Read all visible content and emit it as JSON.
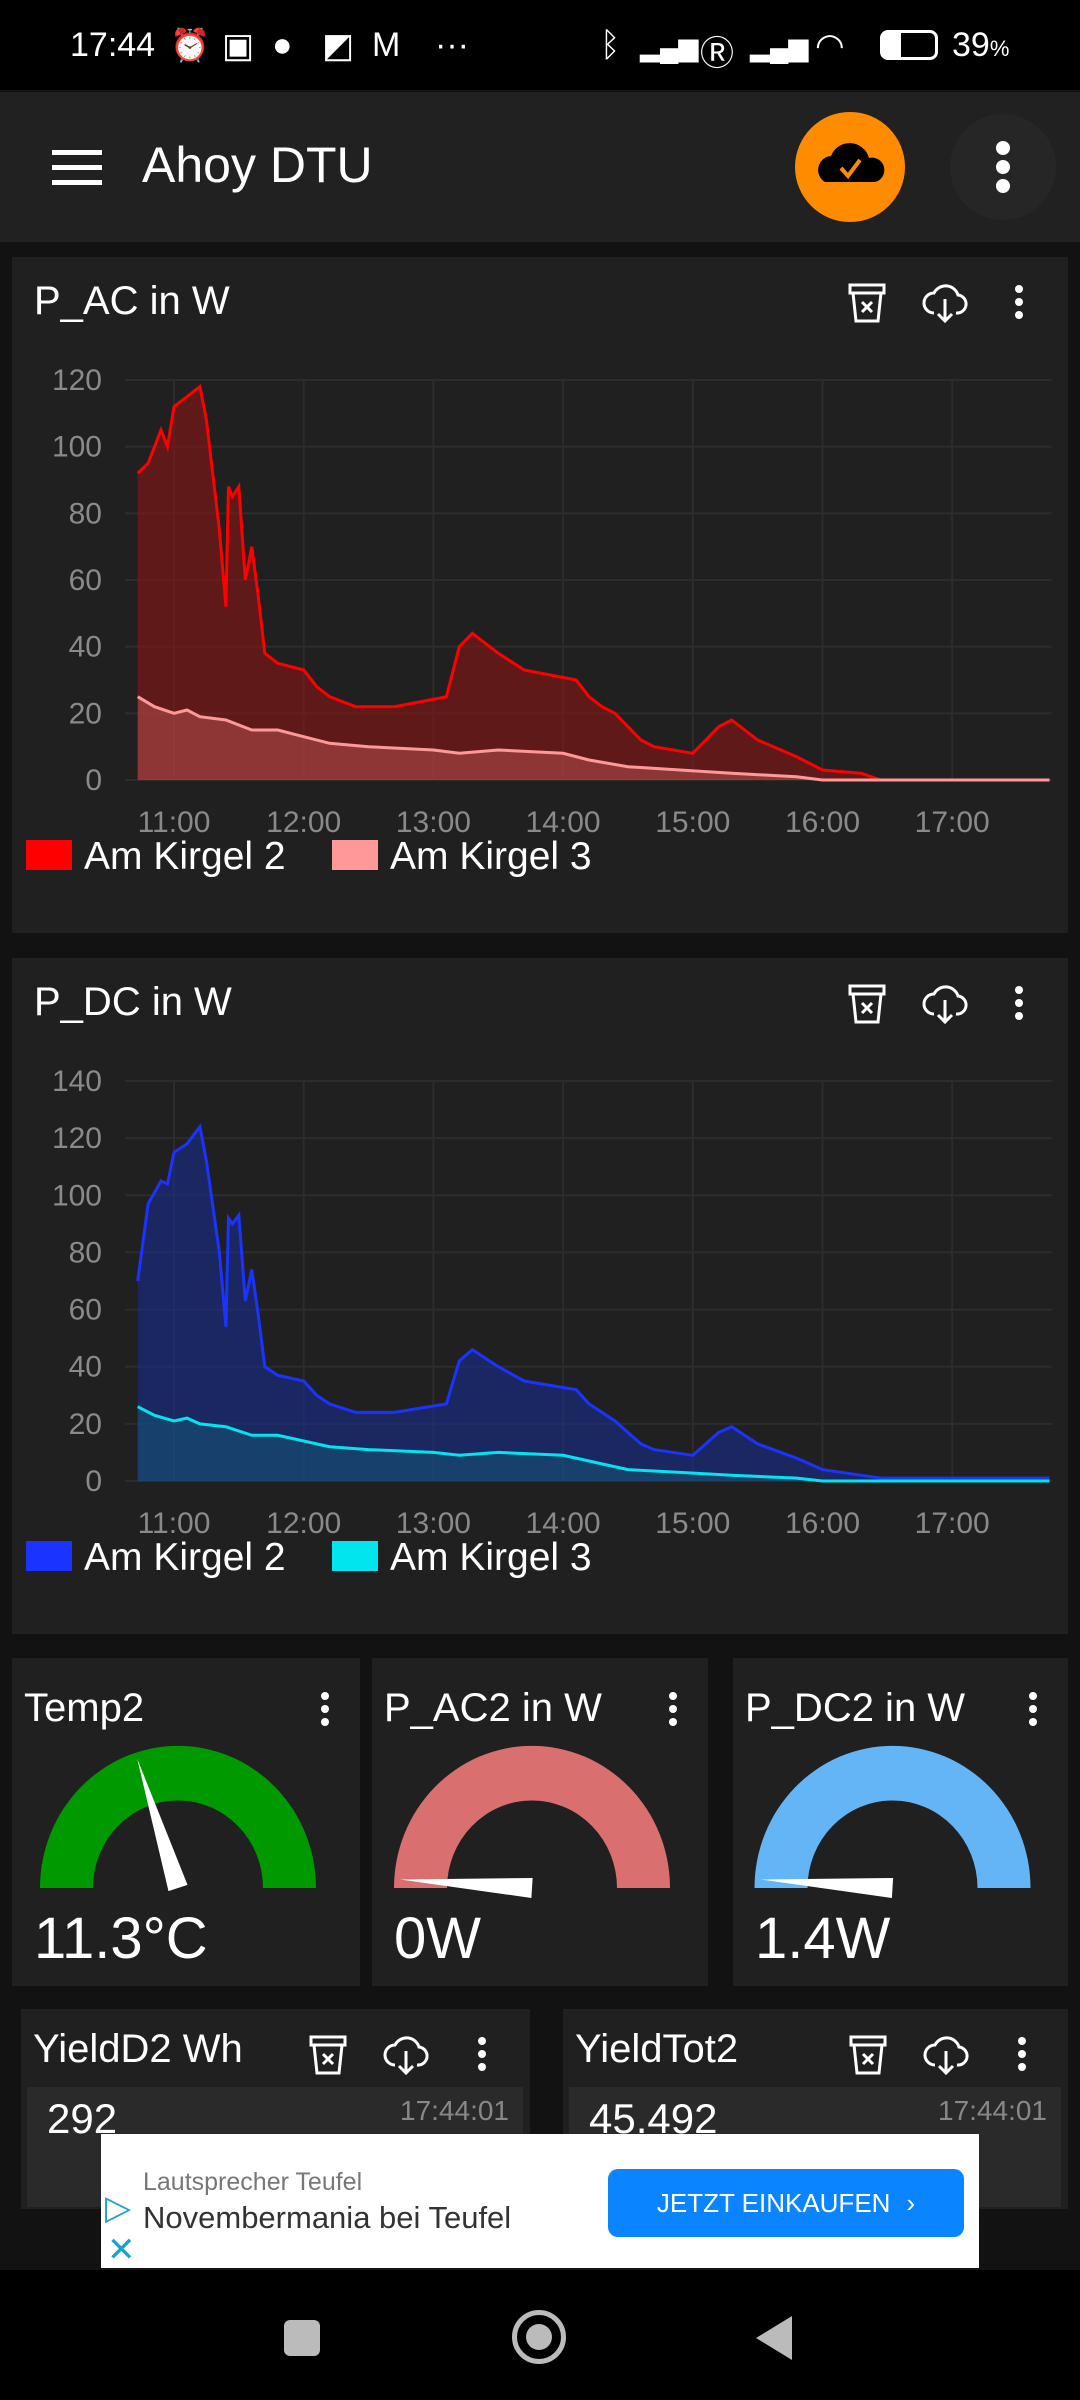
{
  "status_bar": {
    "time": "17:44",
    "battery": "39",
    "battery_unit": "%",
    "notif_more": "···"
  },
  "app_bar": {
    "title": "Ahoy DTU",
    "accent": "#ff8c00"
  },
  "charts": [
    {
      "title": "P_AC in W",
      "chart_data": {
        "type": "area",
        "title": "P_AC in W",
        "xlabel": "",
        "ylabel": "",
        "x_ticks": [
          "11:00",
          "12:00",
          "13:00",
          "14:00",
          "15:00",
          "16:00",
          "17:00"
        ],
        "y_ticks": [
          "0",
          "20",
          "40",
          "60",
          "80",
          "100",
          "120"
        ],
        "ylim": [
          0,
          120
        ],
        "xlim_hours": [
          10.62,
          17.75
        ],
        "legend": "bottom-left",
        "grid": true,
        "series": [
          {
            "name": "Am Kirgel 2",
            "color": "#ff0000",
            "fill": "rgba(150,20,20,0.55)",
            "x": [
              10.72,
              10.8,
              10.9,
              10.95,
              11.0,
              11.1,
              11.2,
              11.25,
              11.35,
              11.4,
              11.42,
              11.45,
              11.5,
              11.55,
              11.6,
              11.65,
              11.7,
              11.8,
              12.0,
              12.1,
              12.2,
              12.4,
              12.7,
              13.1,
              13.2,
              13.3,
              13.5,
              13.7,
              14.1,
              14.2,
              14.3,
              14.4,
              14.6,
              14.7,
              15.0,
              15.1,
              15.2,
              15.3,
              15.5,
              15.8,
              16.0,
              16.3,
              16.45,
              17.75
            ],
            "y": [
              92,
              95,
              105,
              100,
              112,
              115,
              118,
              108,
              75,
              52,
              88,
              85,
              88,
              60,
              70,
              55,
              38,
              35,
              33,
              28,
              25,
              22,
              22,
              25,
              40,
              44,
              38,
              33,
              30,
              25,
              22,
              20,
              12,
              10,
              8,
              12,
              16,
              18,
              12,
              7,
              3,
              2,
              0,
              0
            ]
          },
          {
            "name": "Am Kirgel 3",
            "color": "#ff9999",
            "fill": "rgba(200,90,90,0.45)",
            "x": [
              10.72,
              10.85,
              11.0,
              11.1,
              11.2,
              11.4,
              11.6,
              11.8,
              12.0,
              12.2,
              12.5,
              13.0,
              13.2,
              13.5,
              14.0,
              14.2,
              14.5,
              14.9,
              15.3,
              15.8,
              16.0,
              17.75
            ],
            "y": [
              25,
              22,
              20,
              21,
              19,
              18,
              15,
              15,
              13,
              11,
              10,
              9,
              8,
              9,
              8,
              6,
              4,
              3,
              2,
              1,
              0,
              0
            ]
          }
        ]
      }
    },
    {
      "title": "P_DC in W",
      "chart_data": {
        "type": "area",
        "title": "P_DC in W",
        "xlabel": "",
        "ylabel": "",
        "x_ticks": [
          "11:00",
          "12:00",
          "13:00",
          "14:00",
          "15:00",
          "16:00",
          "17:00"
        ],
        "y_ticks": [
          "0",
          "20",
          "40",
          "60",
          "80",
          "100",
          "120",
          "140"
        ],
        "ylim": [
          0,
          140
        ],
        "xlim_hours": [
          10.62,
          17.75
        ],
        "legend": "bottom-left",
        "grid": true,
        "series": [
          {
            "name": "Am Kirgel 2",
            "color": "#1a33ff",
            "fill": "rgba(25,45,140,0.6)",
            "x": [
              10.72,
              10.8,
              10.9,
              10.95,
              11.0,
              11.1,
              11.2,
              11.25,
              11.35,
              11.4,
              11.42,
              11.45,
              11.5,
              11.55,
              11.6,
              11.65,
              11.7,
              11.8,
              12.0,
              12.1,
              12.2,
              12.4,
              12.7,
              13.1,
              13.2,
              13.3,
              13.5,
              13.7,
              14.1,
              14.2,
              14.3,
              14.4,
              14.6,
              14.7,
              15.0,
              15.1,
              15.2,
              15.3,
              15.5,
              15.8,
              16.0,
              16.3,
              16.45,
              17.75
            ],
            "y": [
              70,
              97,
              105,
              104,
              115,
              118,
              124,
              112,
              80,
              54,
              92,
              90,
              93,
              63,
              74,
              58,
              40,
              37,
              35,
              30,
              27,
              24,
              24,
              27,
              42,
              46,
              40,
              35,
              32,
              27,
              24,
              21,
              13,
              11,
              9,
              13,
              17,
              19,
              13,
              8,
              4,
              2,
              1,
              1
            ]
          },
          {
            "name": "Am Kirgel 3",
            "color": "#00e5ee",
            "fill": "rgba(20,90,120,0.5)",
            "x": [
              10.72,
              10.85,
              11.0,
              11.1,
              11.2,
              11.4,
              11.6,
              11.8,
              12.0,
              12.2,
              12.5,
              13.0,
              13.2,
              13.5,
              14.0,
              14.2,
              14.5,
              14.9,
              15.3,
              15.8,
              16.0,
              17.75
            ],
            "y": [
              26,
              23,
              21,
              22,
              20,
              19,
              16,
              16,
              14,
              12,
              11,
              10,
              9,
              10,
              9,
              7,
              4,
              3,
              2,
              1,
              0,
              0
            ]
          }
        ]
      }
    }
  ],
  "gauges": [
    {
      "title": "Temp2",
      "value": "11.3°C",
      "fraction": 0.4,
      "color": "#009900"
    },
    {
      "title": "P_AC2 in W",
      "value": "0W",
      "fraction": 0.02,
      "color": "#d9706f"
    },
    {
      "title": "P_DC2 in W",
      "value": "1.4W",
      "fraction": 0.02,
      "color": "#64b5f6"
    }
  ],
  "yields": [
    {
      "title": "YieldD2 Wh",
      "value": "292",
      "time": "17:44:01"
    },
    {
      "title": "YieldTot2",
      "value": "45.492",
      "time": "17:44:01"
    }
  ],
  "ad": {
    "advertiser": "Lautsprecher Teufel",
    "headline": "Novembermania bei Teufel",
    "cta": "JETZT EINKAUFEN",
    "cta_color": "#0a84ff"
  }
}
